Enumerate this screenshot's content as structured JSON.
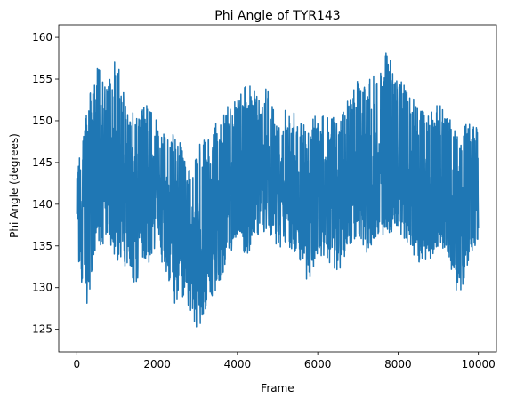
{
  "chart_data": {
    "type": "line",
    "title": "Phi Angle of TYR143",
    "xlabel": "Frame",
    "ylabel": "Phi Angle (degrees)",
    "xlim": [
      -450,
      10450
    ],
    "ylim": [
      122.3,
      161.5
    ],
    "xticks": [
      0,
      2000,
      4000,
      6000,
      8000,
      10000
    ],
    "xtick_labels": [
      "0",
      "2000",
      "4000",
      "6000",
      "8000",
      "10000"
    ],
    "yticks": [
      125,
      130,
      135,
      140,
      145,
      150,
      155,
      160
    ],
    "ytick_labels": [
      "125",
      "130",
      "135",
      "140",
      "145",
      "150",
      "155",
      "160"
    ],
    "grid": false,
    "legend": "none",
    "series": [
      {
        "color": "#1f77b4",
        "x": [
          0,
          250,
          500,
          750,
          1000,
          1250,
          1500,
          1750,
          2000,
          2250,
          2500,
          2750,
          3000,
          3250,
          3500,
          3750,
          4000,
          4250,
          4500,
          4750,
          5000,
          5250,
          5500,
          5750,
          6000,
          6250,
          6500,
          6750,
          7000,
          7250,
          7500,
          7750,
          8000,
          8250,
          8500,
          8750,
          9000,
          9250,
          9500,
          9750,
          10000
        ],
        "min": [
          133,
          128,
          134,
          136,
          133,
          132,
          130,
          132,
          135,
          131,
          127,
          128,
          124,
          128,
          130,
          133,
          136,
          133,
          136,
          137,
          134,
          135,
          133,
          130,
          134,
          133,
          131,
          135,
          136,
          134,
          136,
          136,
          137,
          135,
          133,
          133,
          135,
          134,
          128,
          133,
          136
        ],
        "mean": [
          140,
          143,
          145,
          144,
          143,
          142,
          141,
          141,
          142,
          139,
          137,
          136,
          135,
          137,
          139,
          141,
          142,
          143,
          143,
          144,
          142,
          142,
          141,
          140,
          141,
          141,
          140,
          141,
          143,
          143,
          143,
          144,
          144,
          142,
          141,
          141,
          141,
          140,
          139,
          141,
          142
        ],
        "max": [
          144,
          152,
          157,
          154,
          158,
          152,
          151,
          152,
          150,
          148,
          149,
          144,
          147,
          148,
          150,
          152,
          153,
          155,
          153,
          154,
          150,
          152,
          151,
          150,
          151,
          151,
          150,
          153,
          155,
          155,
          156,
          159,
          155,
          154,
          152,
          151,
          152,
          151,
          148,
          150,
          150
        ]
      }
    ]
  }
}
